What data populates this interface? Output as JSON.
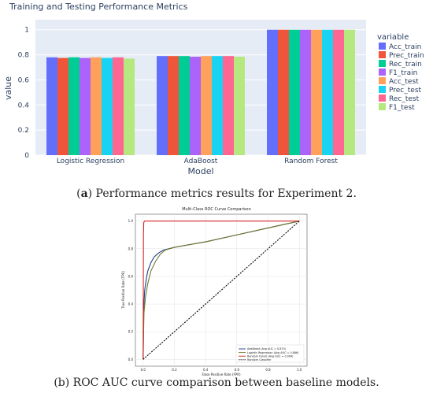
{
  "chart_data": [
    {
      "type": "bar",
      "title": "Training and Testing Performance Metrics",
      "xlabel": "Model",
      "ylabel": "value",
      "legend_title": "variable",
      "legend_position": "right",
      "grid": true,
      "ylim": [
        0,
        1.08
      ],
      "yticks": [
        0,
        0.2,
        0.4,
        0.6,
        0.8,
        1
      ],
      "ytick_labels": [
        "0",
        "0.2",
        "0.4",
        "0.6",
        "0.8",
        "1"
      ],
      "categories": [
        "Logistic Regression",
        "AdaBoost",
        "Random Forest"
      ],
      "series": [
        {
          "name": "Acc_train",
          "color": "#636efa",
          "values": [
            0.78,
            0.79,
            1.0
          ]
        },
        {
          "name": "Prec_train",
          "color": "#ef553b",
          "values": [
            0.775,
            0.79,
            1.0
          ]
        },
        {
          "name": "Rec_train",
          "color": "#00cc96",
          "values": [
            0.78,
            0.79,
            1.0
          ]
        },
        {
          "name": "F1_train",
          "color": "#ab63fa",
          "values": [
            0.775,
            0.785,
            1.0
          ]
        },
        {
          "name": "Acc_test",
          "color": "#ffa15a",
          "values": [
            0.78,
            0.79,
            1.0
          ]
        },
        {
          "name": "Prec_test",
          "color": "#19d3f3",
          "values": [
            0.775,
            0.79,
            1.0
          ]
        },
        {
          "name": "Rec_test",
          "color": "#ff6692",
          "values": [
            0.78,
            0.79,
            1.0
          ]
        },
        {
          "name": "F1_test",
          "color": "#b6e880",
          "values": [
            0.77,
            0.785,
            1.0
          ]
        }
      ],
      "colors": {
        "plot_bg": "#e5ecf6",
        "grid": "#ffffff",
        "text": "#2a3f5f"
      }
    },
    {
      "type": "line",
      "title": "Multi-Class ROC Curve Comparison",
      "xlabel": "False Positive Rate (FPR)",
      "ylabel": "True Positive Rate (TPR)",
      "xlim": [
        0,
        1
      ],
      "ylim": [
        0,
        1
      ],
      "xticks": [
        0,
        0.2,
        0.4,
        0.6,
        0.8,
        1
      ],
      "xtick_labels": [
        "0.0",
        "0.2",
        "0.4",
        "0.6",
        "0.8",
        "1.0"
      ],
      "yticks": [
        0,
        0.2,
        0.4,
        0.6,
        0.8,
        1
      ],
      "ytick_labels": [
        "0.0",
        "0.2",
        "0.4",
        "0.6",
        "0.8",
        "1.0"
      ],
      "grid": true,
      "legend_position": "lower-right",
      "series": [
        {
          "name": "AdaBoost (Avg AUC = 0.870)",
          "color": "#1f3f8f",
          "dash": false,
          "x": [
            0,
            0.005,
            0.01,
            0.02,
            0.03,
            0.05,
            0.07,
            0.1,
            0.13,
            0.2,
            0.4,
            0.6,
            0.8,
            1.0
          ],
          "y": [
            0,
            0.4,
            0.5,
            0.58,
            0.64,
            0.7,
            0.74,
            0.77,
            0.79,
            0.81,
            0.85,
            0.9,
            0.95,
            1.0
          ]
        },
        {
          "name": "Logistic Regression (Avg AUC = 0.866)",
          "color": "#6f7a2a",
          "dash": false,
          "x": [
            0,
            0.005,
            0.015,
            0.03,
            0.05,
            0.08,
            0.11,
            0.14,
            0.2,
            0.4,
            0.6,
            0.8,
            1.0
          ],
          "y": [
            0,
            0.33,
            0.45,
            0.55,
            0.64,
            0.71,
            0.76,
            0.79,
            0.81,
            0.85,
            0.9,
            0.95,
            1.0
          ]
        },
        {
          "name": "Random Forest (Avg AUC = 0.994)",
          "color": "#d62728",
          "dash": false,
          "x": [
            0,
            0.002,
            0.004,
            0.01,
            0.05,
            1.0
          ],
          "y": [
            0,
            0.9,
            0.99,
            1.0,
            1.0,
            1.0
          ]
        },
        {
          "name": "Random Classifier",
          "color": "#000000",
          "dash": true,
          "x": [
            0,
            1
          ],
          "y": [
            0,
            1
          ]
        }
      ]
    }
  ],
  "captions": {
    "a_letter": "a",
    "a_text": " Performance metrics results for Experiment 2.",
    "b_text": "(b) ROC AUC curve comparison between baseline models."
  }
}
